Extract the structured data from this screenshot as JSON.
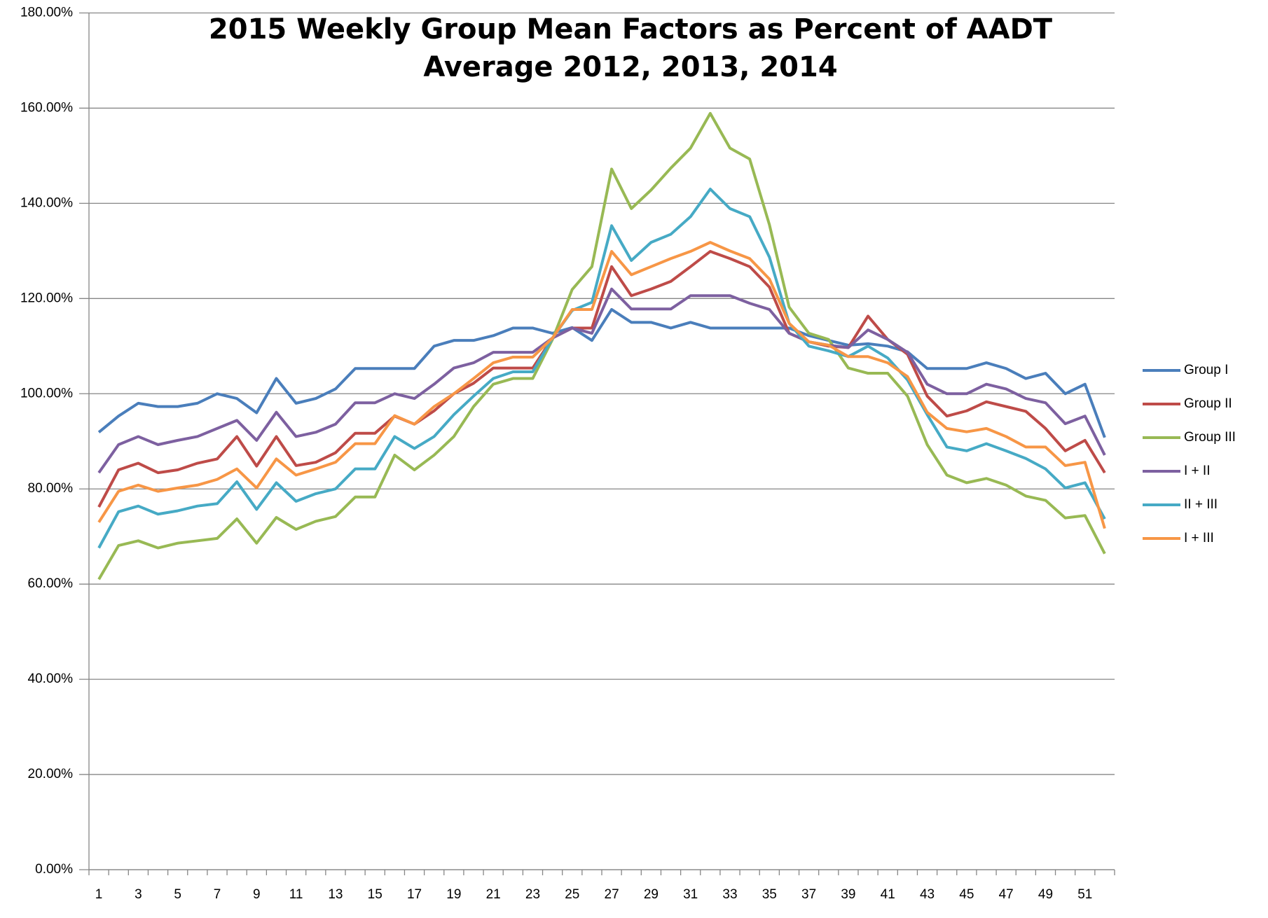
{
  "chart_data": {
    "type": "line",
    "title": [
      "2015 Weekly Group Mean Factors as Percent of AADT",
      "Average 2012, 2013, 2014"
    ],
    "categories": [
      1,
      null,
      3,
      null,
      5,
      null,
      7,
      null,
      9,
      null,
      11,
      null,
      13,
      null,
      15,
      null,
      17,
      null,
      19,
      null,
      21,
      null,
      23,
      null,
      25,
      null,
      27,
      null,
      29,
      null,
      31,
      null,
      33,
      null,
      35,
      null,
      37,
      null,
      39,
      null,
      41,
      null,
      43,
      null,
      45,
      null,
      47,
      null,
      49,
      null,
      51,
      null
    ],
    "ylim": [
      0,
      180
    ],
    "yticks": [
      {
        "value": 0,
        "label": "0.00%"
      },
      {
        "value": 20,
        "label": "20.00%"
      },
      {
        "value": 40,
        "label": "40.00%"
      },
      {
        "value": 60,
        "label": "60.00%"
      },
      {
        "value": 80,
        "label": "80.00%"
      },
      {
        "value": 100,
        "label": "100.00%"
      },
      {
        "value": 120,
        "label": "120.00%"
      },
      {
        "value": 140,
        "label": "140.00%"
      },
      {
        "value": 160,
        "label": "160.00%"
      },
      {
        "value": 180,
        "label": "180.00%"
      }
    ],
    "grid": true,
    "legend": "right",
    "series": [
      {
        "name": "Group I",
        "color": "#4a7ebb",
        "values": [
          91.9,
          95.3,
          98,
          97.3,
          97.3,
          98,
          100,
          99,
          96,
          103.2,
          98,
          99,
          101,
          105.3,
          105.3,
          105.3,
          105.3,
          110,
          111.2,
          111.2,
          112.2,
          113.8,
          113.8,
          112.7,
          113.9,
          111.2,
          117.7,
          115,
          115,
          113.8,
          115,
          113.8,
          113.8,
          113.8,
          113.8,
          113.8,
          112.2,
          111.2,
          110.2,
          110.5,
          110,
          108.8,
          105.3,
          105.3,
          105.3,
          106.5,
          105.3,
          103.2,
          104.3,
          100,
          102,
          90.8
        ]
      },
      {
        "name": "Group II",
        "color": "#be4b48",
        "values": [
          76.2,
          84,
          85.4,
          83.4,
          84,
          85.4,
          86.3,
          91,
          84.8,
          91,
          84.9,
          85.6,
          87.6,
          91.7,
          91.7,
          95.3,
          93.6,
          96.4,
          100,
          102.2,
          105.4,
          105.4,
          105.4,
          111.7,
          113.8,
          113.8,
          126.7,
          120.6,
          122,
          123.6,
          126.7,
          129.9,
          128.4,
          126.7,
          122.4,
          112.7,
          110.9,
          110,
          109.7,
          116.3,
          111.4,
          108.3,
          99.5,
          95.3,
          96.4,
          98.3,
          97.3,
          96.3,
          92.7,
          88,
          90.2,
          83.4
        ]
      },
      {
        "name": "Group III",
        "color": "#98b954",
        "values": [
          61,
          68.1,
          69.1,
          67.6,
          68.6,
          69.1,
          69.6,
          73.7,
          68.6,
          74,
          71.5,
          73.2,
          74.2,
          78.3,
          78.3,
          87.1,
          84,
          87.1,
          91,
          97.3,
          102,
          103.2,
          103.2,
          111.4,
          121.9,
          126.7,
          147.2,
          138.9,
          142.8,
          147.4,
          151.6,
          158.9,
          151.6,
          149.3,
          135.5,
          118.2,
          112.7,
          111.4,
          105.4,
          104.3,
          104.3,
          99.5,
          89.3,
          82.9,
          81.3,
          82.2,
          80.8,
          78.5,
          77.6,
          73.9,
          74.4,
          66.4
        ]
      },
      {
        "name": "I + II",
        "color": "#7d60a0",
        "values": [
          83.4,
          89.3,
          91,
          89.3,
          90.2,
          91,
          92.7,
          94.4,
          90.2,
          96.1,
          91,
          91.9,
          93.6,
          98.1,
          98.1,
          100,
          99,
          102,
          105.4,
          106.5,
          108.7,
          108.7,
          108.7,
          111.7,
          113.8,
          112.7,
          122,
          117.8,
          117.8,
          117.8,
          120.6,
          120.6,
          120.6,
          119,
          117.7,
          112.7,
          110.9,
          110.2,
          109.7,
          113.4,
          111.4,
          108.7,
          102,
          100,
          100,
          102,
          101,
          99,
          98.1,
          93.7,
          95.3,
          87.1
        ]
      },
      {
        "name": "II + III",
        "color": "#46aac5",
        "values": [
          67.6,
          75.2,
          76.4,
          74.7,
          75.4,
          76.4,
          76.9,
          81.5,
          75.7,
          81.3,
          77.4,
          79,
          80,
          84.2,
          84.2,
          91,
          88.5,
          91,
          95.6,
          99.5,
          103.2,
          104.6,
          104.6,
          111.7,
          117.5,
          119.2,
          135.3,
          128,
          131.8,
          133.5,
          137.2,
          143,
          138.9,
          137.2,
          128.7,
          114.8,
          110,
          109,
          107.8,
          110,
          107.5,
          102.9,
          95.6,
          88.8,
          88,
          89.5,
          88,
          86.4,
          84.2,
          80.2,
          81.3,
          73.7
        ]
      },
      {
        "name": "I + III",
        "color": "#f79646",
        "values": [
          73,
          79.5,
          80.8,
          79.5,
          80.2,
          80.8,
          82,
          84.2,
          80.2,
          86.3,
          82.9,
          84.2,
          85.6,
          89.5,
          89.5,
          95.4,
          93.6,
          97.3,
          100,
          103.2,
          106.5,
          107.7,
          107.7,
          111.7,
          117.7,
          117.7,
          129.9,
          125,
          126.7,
          128.4,
          129.9,
          131.8,
          130,
          128.4,
          124.1,
          114.8,
          110.9,
          110.2,
          107.8,
          107.8,
          106.5,
          103.6,
          96.1,
          92.7,
          92,
          92.7,
          91,
          88.8,
          88.8,
          84.9,
          85.6,
          71.7
        ]
      }
    ]
  }
}
